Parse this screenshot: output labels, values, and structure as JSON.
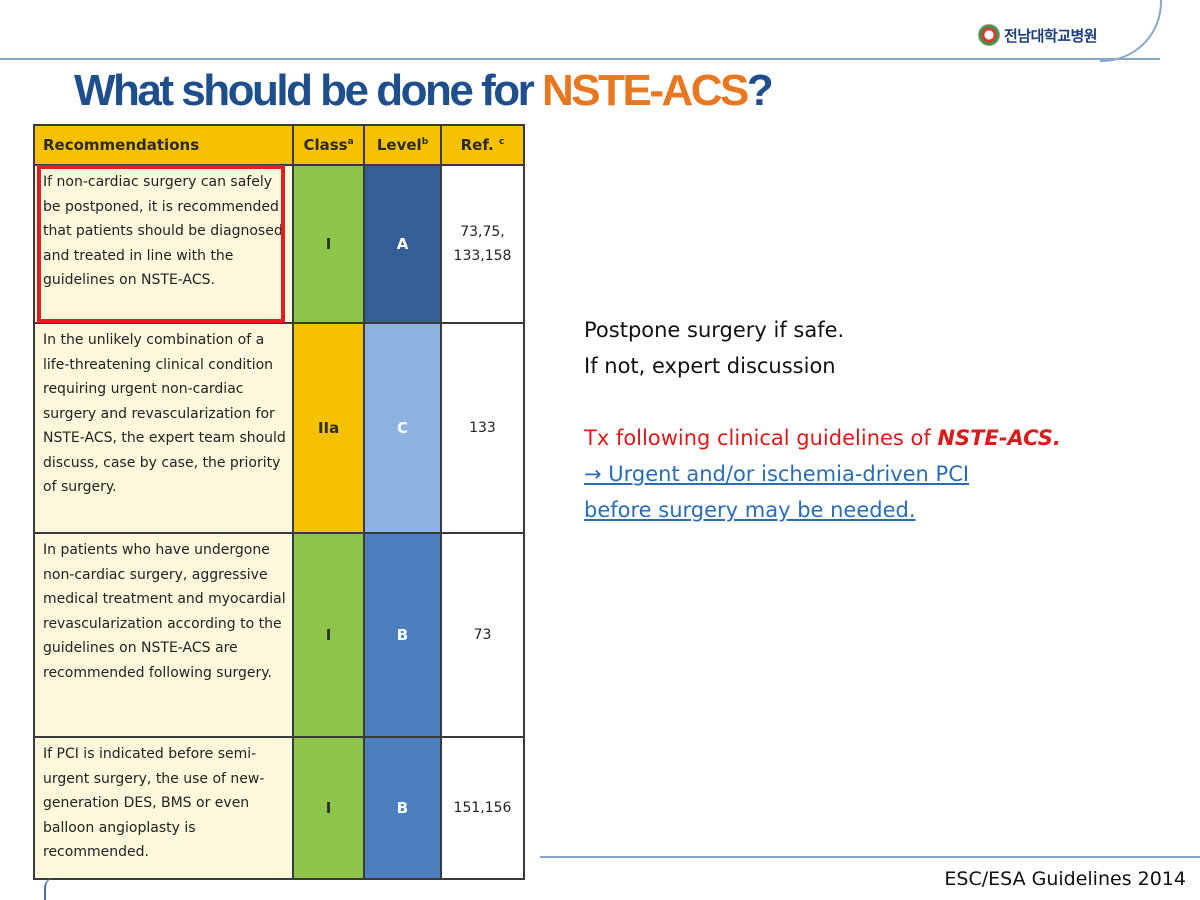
{
  "header": {
    "logo_text": "전남대학교병원",
    "title_main": "What should be done for ",
    "title_accent": "NSTE-ACS",
    "title_end": "?"
  },
  "table": {
    "headers": {
      "recommendations": "Recommendations",
      "class": "Class",
      "class_sup": "a",
      "level": "Level",
      "level_sup": "b",
      "ref": "Ref.",
      "ref_sup": "c"
    },
    "rows": [
      {
        "text": "If non-cardiac surgery can safely be postponed, it is recommended that patients should be diagnosed and treated in line with the guidelines on NSTE-ACS.",
        "class": "I",
        "level": "A",
        "ref": "73,75, 133,158"
      },
      {
        "text": "In the unlikely combination of a life-threatening clinical condition requiring urgent non-cardiac surgery and revascularization for NSTE-ACS, the expert team should discuss, case by case, the priority of surgery.",
        "class": "IIa",
        "level": "C",
        "ref": "133"
      },
      {
        "text": "In patients who have undergone non-cardiac surgery, aggressive medical treatment and myocardial revascularization according to the guidelines on NSTE-ACS are recommended following surgery.",
        "class": "I",
        "level": "B",
        "ref": "73"
      },
      {
        "text": "If PCI is indicated before semi-urgent surgery, the use of new-generation DES, BMS or even balloon angioplasty is recommended.",
        "class": "I",
        "level": "B",
        "ref": "151,156"
      }
    ]
  },
  "notes": {
    "line1": "Postpone surgery if safe.",
    "line2": "If not, expert discussion",
    "tx_prefix": "Tx following clinical guidelines of ",
    "tx_emphasis": "NSTE-ACS.",
    "pci_line1": "→ Urgent and/or ischemia-driven PCI",
    "pci_line2": "before surgery may be  needed."
  },
  "footer": {
    "source": "ESC/ESA Guidelines 2014"
  },
  "colors": {
    "title_blue": "#1f4e8c",
    "title_accent": "#e87722",
    "highlight": "#e02020",
    "red_text": "#d81b1b",
    "link_blue": "#2a6db5"
  }
}
